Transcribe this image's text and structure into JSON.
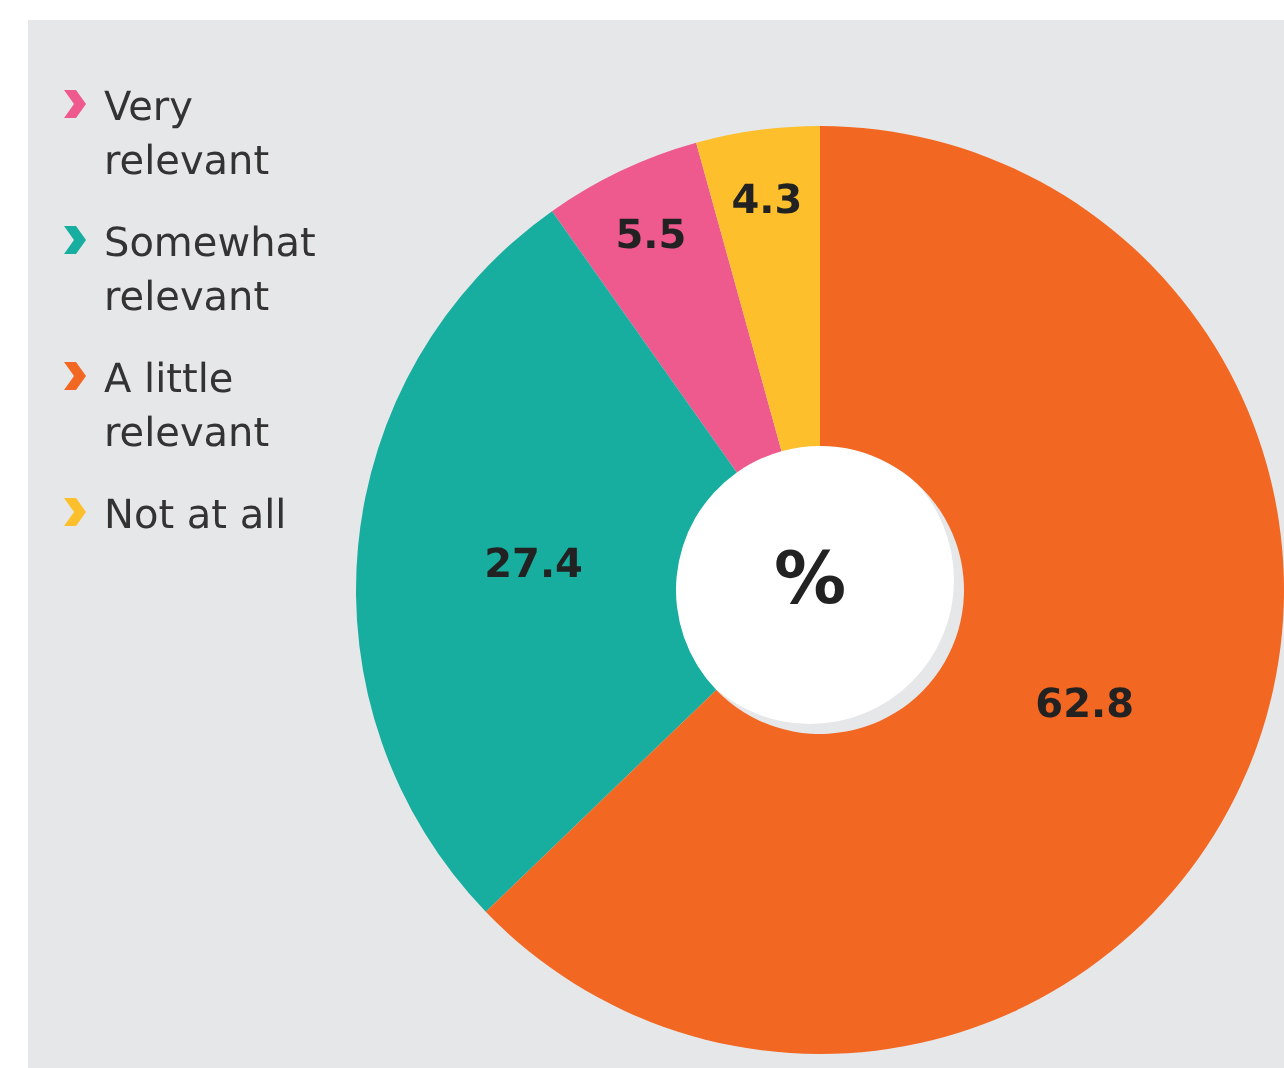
{
  "chart_data": {
    "type": "donut",
    "categories": [
      "Very relevant",
      "Somewhat relevant",
      "A little relevant",
      "Not at all"
    ],
    "values": [
      5.5,
      27.4,
      62.8,
      4.3
    ],
    "colors": [
      "#ee5a8e",
      "#17ae9f",
      "#f26722",
      "#fdbf2c"
    ],
    "data_labels": true,
    "legend": "left",
    "annotations": [
      "%"
    ]
  }
}
